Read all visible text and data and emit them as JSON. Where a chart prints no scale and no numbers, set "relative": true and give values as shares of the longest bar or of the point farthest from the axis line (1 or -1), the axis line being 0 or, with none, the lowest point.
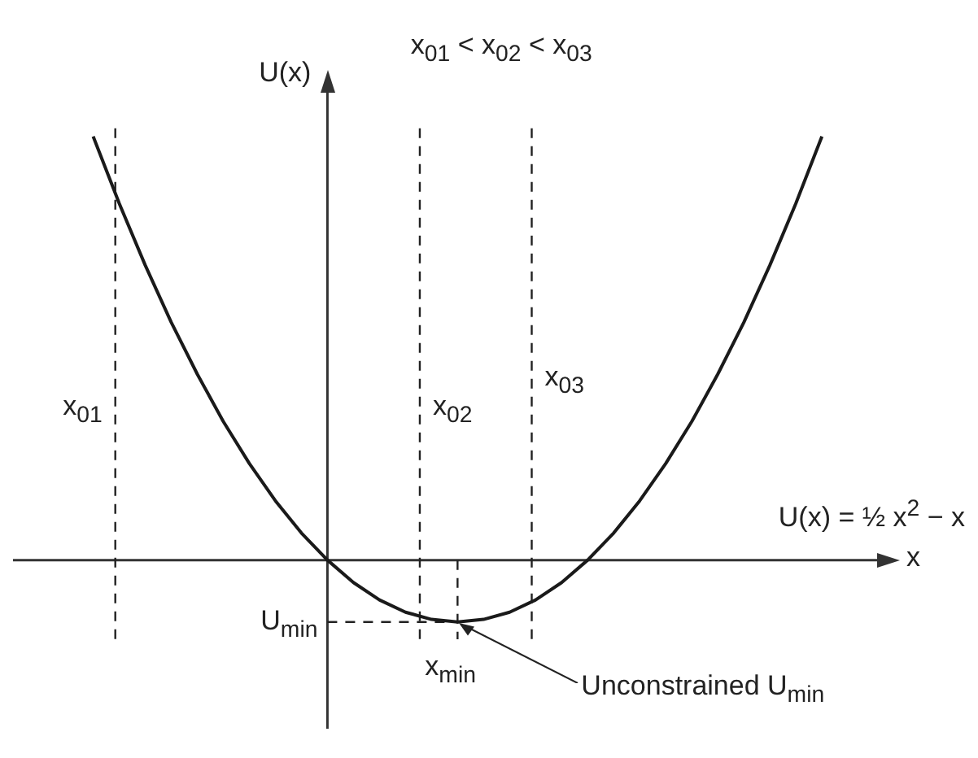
{
  "chart_data": {
    "type": "line",
    "xlabel": "x",
    "ylabel": "U(x)",
    "relative": true,
    "categories": [
      null,
      null,
      null,
      null,
      null,
      null,
      null,
      null,
      null,
      null,
      null,
      null,
      null,
      null,
      null,
      null,
      null,
      null,
      null,
      null,
      null,
      null,
      null,
      null,
      null,
      null,
      null,
      null,
      null
    ],
    "series": [
      {
        "color": "#1a1a1a",
        "values": [
          1,
          0.842,
          0.696,
          0.561,
          0.439,
          0.327,
          0.228,
          0.14,
          0.064,
          0,
          -0.053,
          -0.094,
          -0.123,
          -0.14,
          -0.146,
          -0.14,
          -0.123,
          -0.094,
          -0.053,
          0,
          0.064,
          0.14,
          0.228,
          0.327,
          0.439,
          0.561,
          0.696,
          0.842,
          1
        ]
      }
    ],
    "ref_lines": [
      {
        "axis": "y",
        "value": -0.146,
        "label": "U$_{min}$",
        "line_style": "dashed"
      }
    ],
    "annotations": [
      "x$_{01}$ < x$_{02}$ < x$_{03}$",
      "U(x) = ½ x$^{2}$ − x",
      "Unconstrained U$_{min}$",
      "x$_{01}$",
      "x$_{02}$",
      "x$_{03}$",
      "x$_{min}$"
    ]
  }
}
